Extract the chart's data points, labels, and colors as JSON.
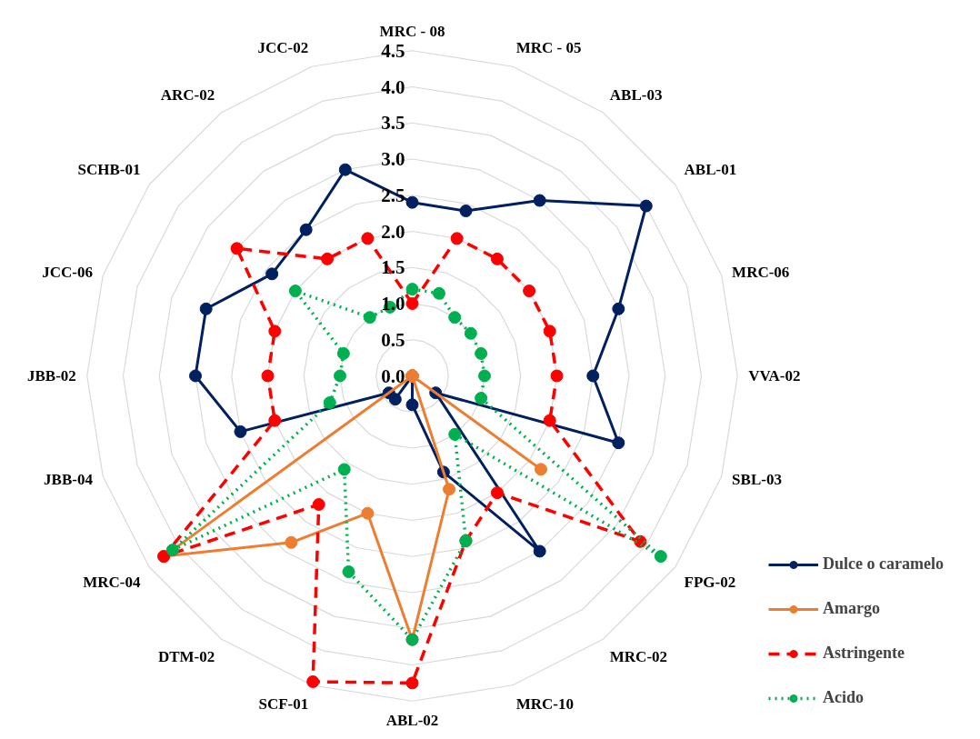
{
  "chart_data": {
    "type": "radar",
    "categories": [
      "MRC - 08",
      "MRC - 05",
      "ABL-03",
      "ABL-01",
      "MRC-06",
      "VVA-02",
      "SBL-03",
      "FPG-02",
      "MRC-02",
      "MRC-10",
      "ABL-02",
      "SCF-01",
      "DTM-02",
      "MRC-04",
      "JBB-04",
      "JBB-02",
      "JCC-06",
      "SCHB-01",
      "ARC-02",
      "JCC-02"
    ],
    "ylim": [
      0,
      4.5
    ],
    "yticks": [
      {
        "value": 0,
        "label": "0.0"
      },
      {
        "value": 0.5,
        "label": "0.5"
      },
      {
        "value": 1,
        "label": "1.0"
      },
      {
        "value": 1.5,
        "label": "1.5"
      },
      {
        "value": 2,
        "label": "2.0"
      },
      {
        "value": 2.5,
        "label": "2.5"
      },
      {
        "value": 3,
        "label": "3.0"
      },
      {
        "value": 3.5,
        "label": "3.5"
      },
      {
        "value": 4,
        "label": "4.0"
      },
      {
        "value": 4.5,
        "label": "4.5"
      }
    ],
    "grid": true,
    "legend": "right",
    "marker": "circle",
    "series": [
      {
        "name": "Dulce o caramelo",
        "color": "#002060",
        "line_style": "solid",
        "values": [
          2.4,
          2.4,
          3.0,
          4.0,
          3.0,
          2.5,
          3.0,
          0.4,
          3.0,
          1.4,
          0.4,
          0,
          0.4,
          0.4,
          2.5,
          3.0,
          3.0,
          2.4,
          2.5,
          3.0
        ]
      },
      {
        "name": "Amargo",
        "color": "#ed7d31",
        "line_style": "solid",
        "values": [
          0,
          0,
          0,
          0,
          0,
          0,
          0,
          2.2,
          0,
          1.65,
          3.65,
          2.0,
          2.85,
          4.25,
          0,
          0,
          0,
          0,
          0,
          0
        ]
      },
      {
        "name": "Astringente",
        "color": "#ff0000",
        "line_style": "dashed",
        "values": [
          1.0,
          2.0,
          2.0,
          2.0,
          2.0,
          2.0,
          2.0,
          3.9,
          2.0,
          2.4,
          4.25,
          4.45,
          2.2,
          4.25,
          2.0,
          2.0,
          2.0,
          3.0,
          2.0,
          2.0
        ]
      },
      {
        "name": "Acido",
        "color": "#00b050",
        "line_style": "dotted",
        "values": [
          1.2,
          1.2,
          1.0,
          1.0,
          1.0,
          1.0,
          1.0,
          4.25,
          1.0,
          2.4,
          3.65,
          2.85,
          1.6,
          4.1,
          1.2,
          1.0,
          1.0,
          2.0,
          1.0,
          1.0
        ]
      }
    ]
  }
}
